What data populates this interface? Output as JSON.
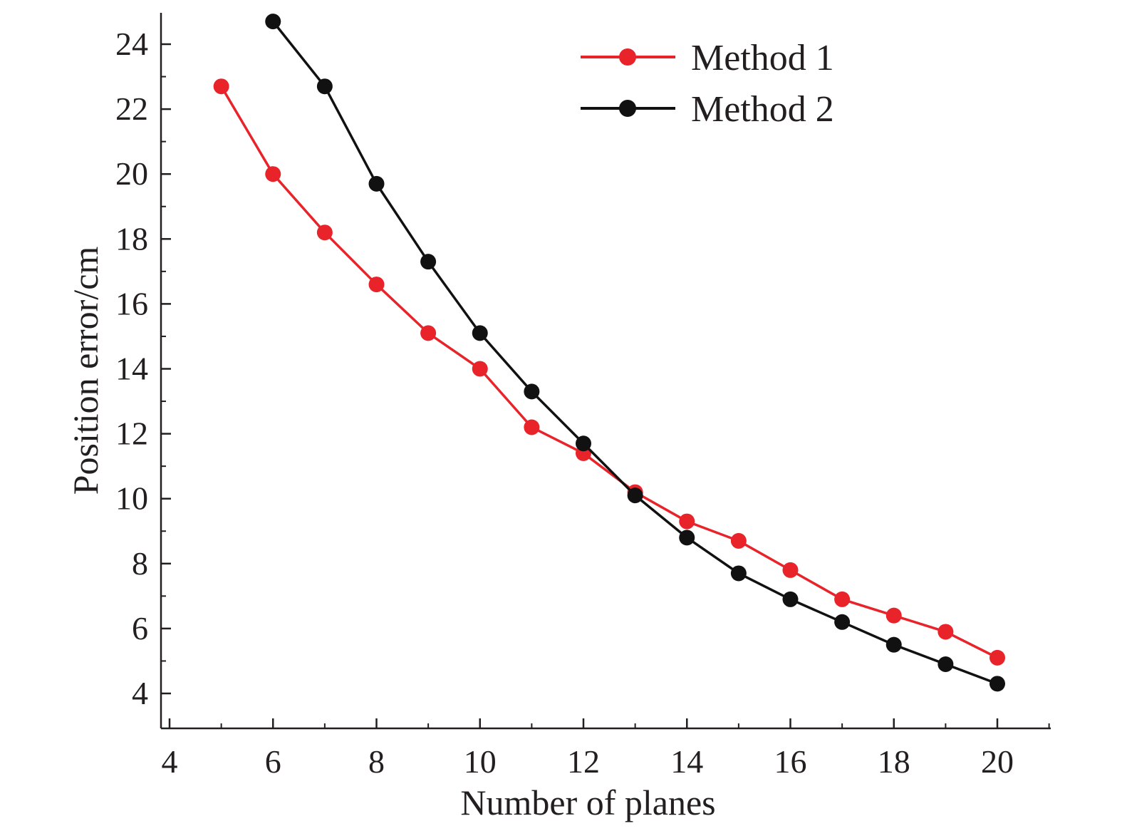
{
  "chart_data": {
    "type": "line",
    "title": "",
    "xlabel": "Number of planes",
    "ylabel": "Position error/cm",
    "xlim": [
      4,
      21.5
    ],
    "ylim": [
      3,
      25
    ],
    "xticks": [
      4,
      6,
      8,
      10,
      12,
      14,
      16,
      18,
      20
    ],
    "yticks": [
      4,
      6,
      8,
      10,
      12,
      14,
      16,
      18,
      20,
      22,
      24
    ],
    "grid": false,
    "legend_position": "top-right",
    "series": [
      {
        "name": "Method 1",
        "color": "#e8232a",
        "marker": "circle",
        "x": [
          5,
          6,
          7,
          8,
          9,
          10,
          11,
          12,
          13,
          14,
          15,
          16,
          17,
          18,
          19,
          20
        ],
        "y": [
          22.7,
          20.0,
          18.2,
          16.6,
          15.1,
          14.0,
          12.2,
          11.4,
          10.2,
          9.3,
          8.7,
          7.8,
          6.9,
          6.4,
          5.9,
          5.1
        ]
      },
      {
        "name": "Method 2",
        "color": "#111111",
        "marker": "circle",
        "x": [
          6,
          7,
          8,
          9,
          10,
          11,
          12,
          13,
          14,
          15,
          16,
          17,
          18,
          19,
          20
        ],
        "y": [
          24.7,
          22.7,
          19.7,
          17.3,
          15.1,
          13.3,
          11.7,
          10.1,
          8.8,
          7.7,
          6.9,
          6.2,
          5.5,
          4.9,
          4.3
        ]
      }
    ]
  }
}
